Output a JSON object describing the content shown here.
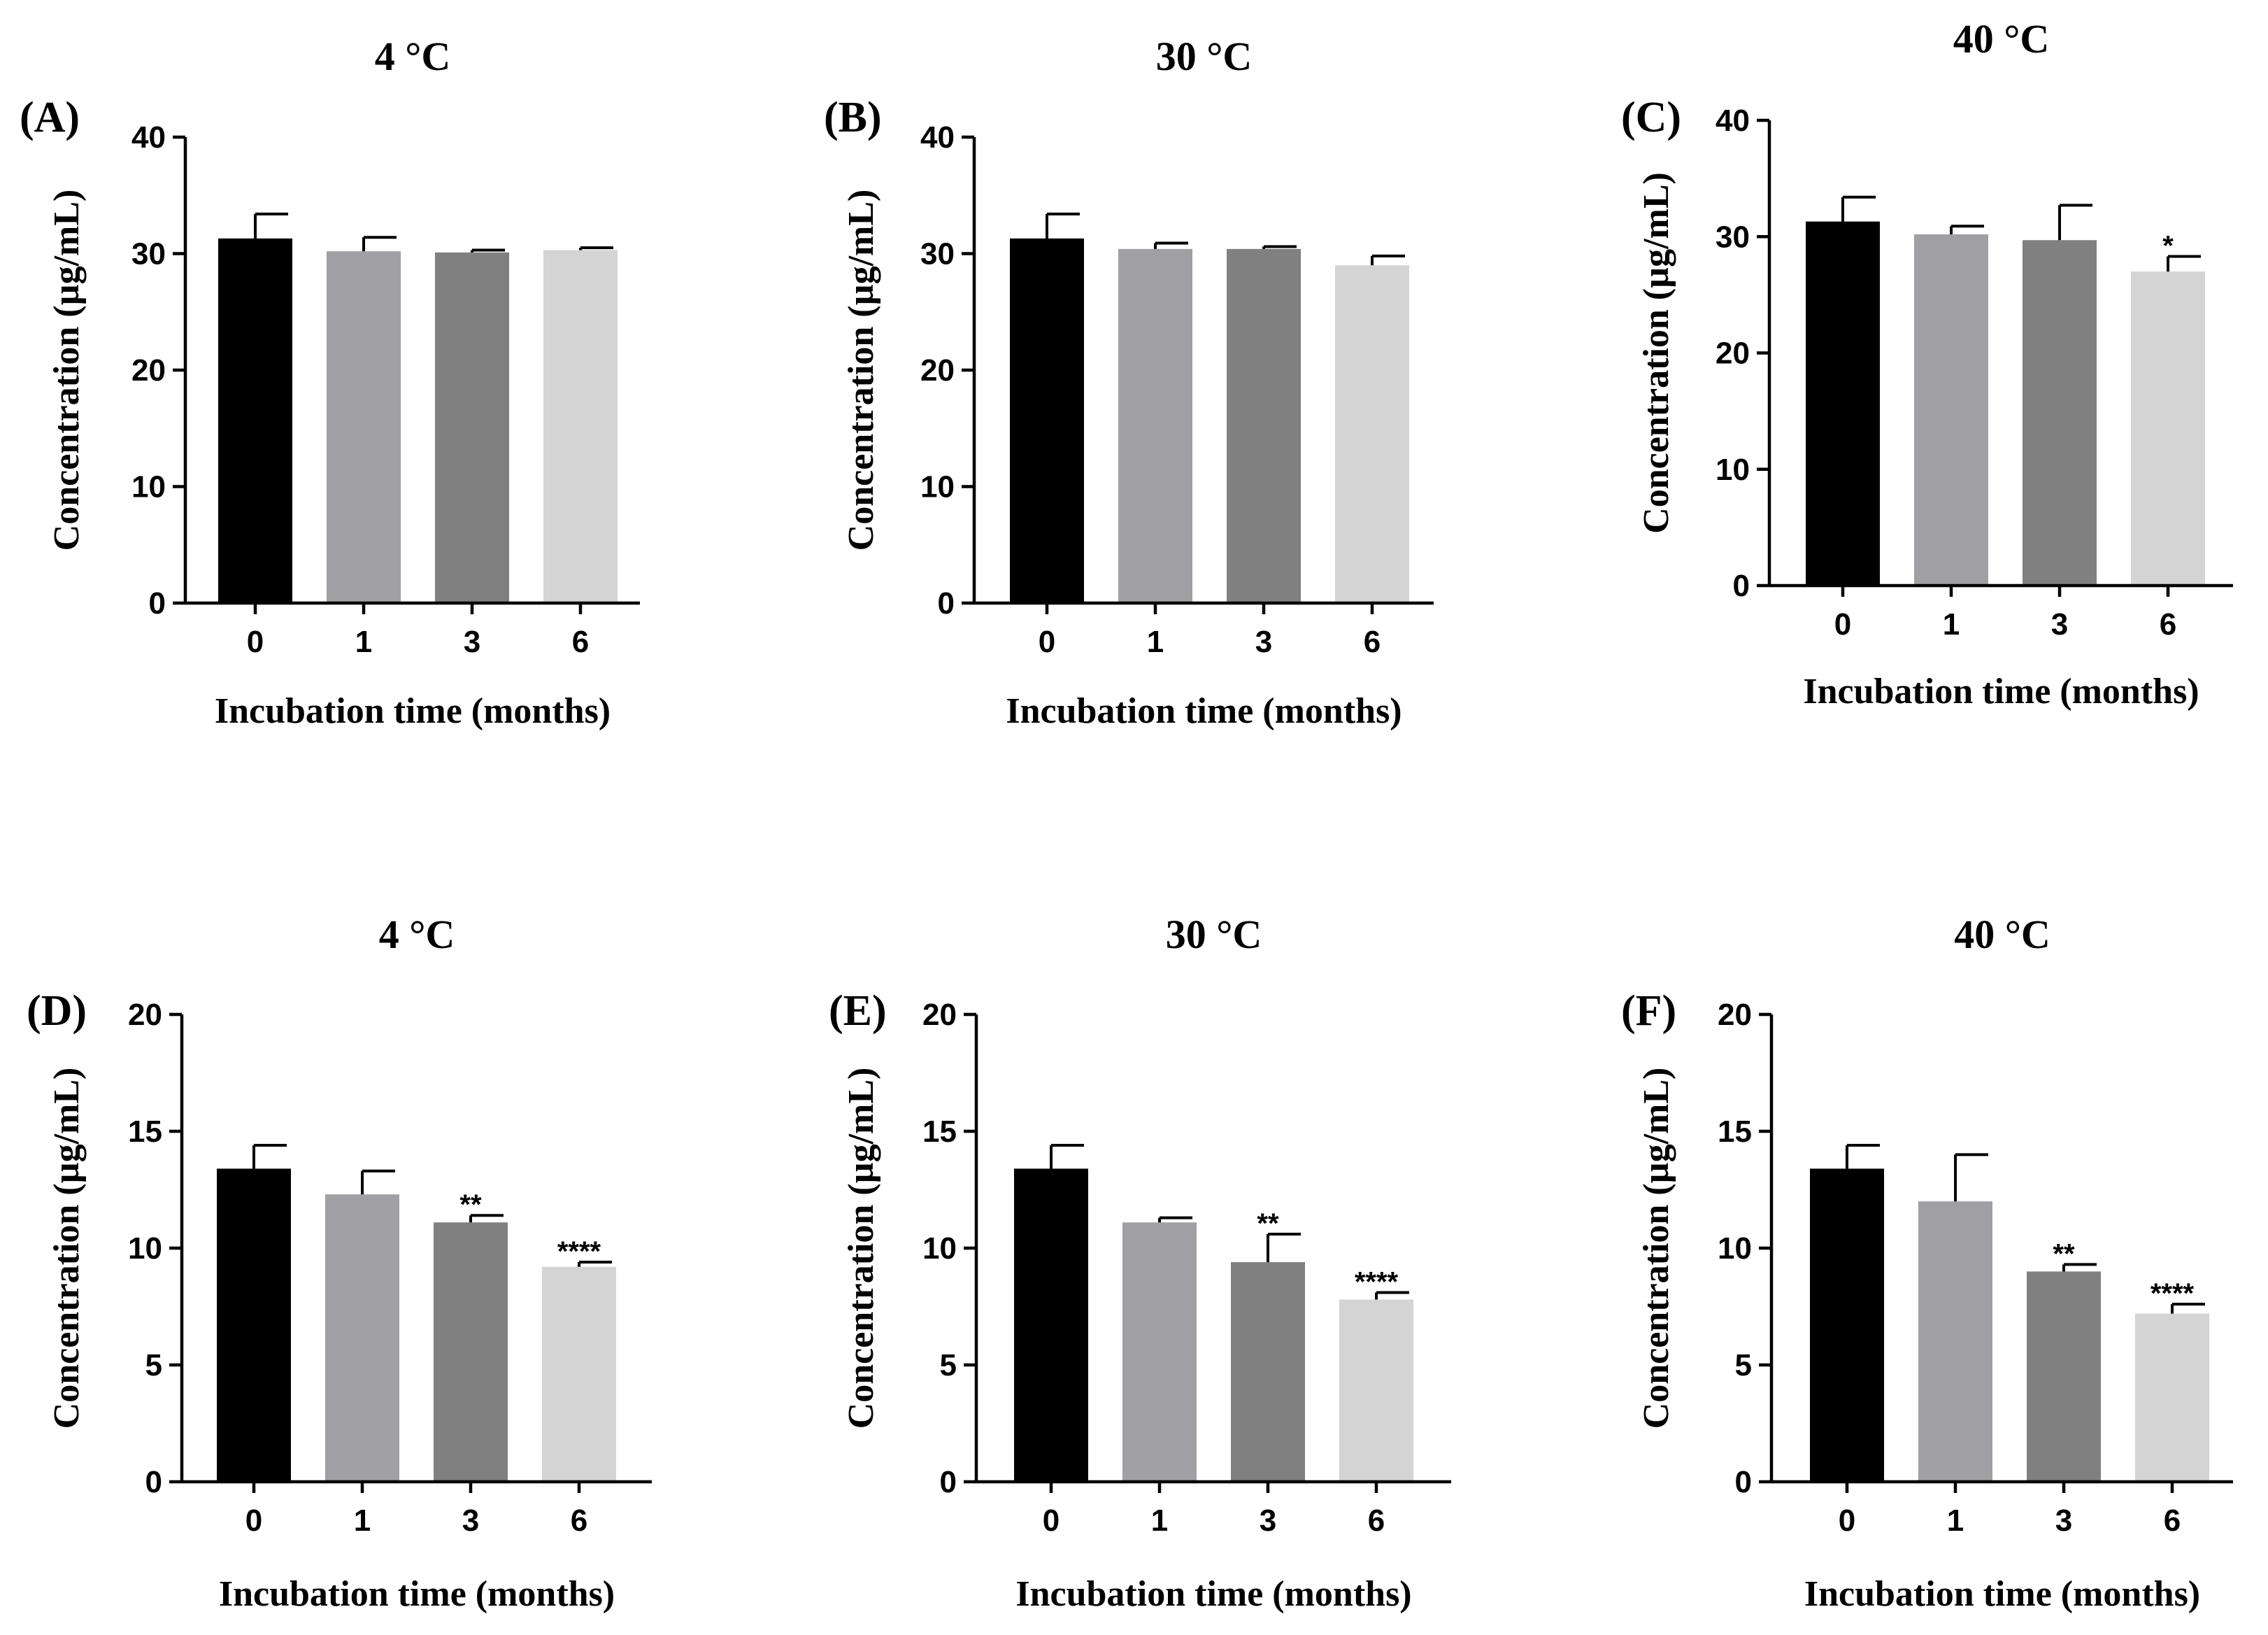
{
  "chart_data": [
    {
      "type": "bar",
      "panel": "(A)",
      "title": "4 °C",
      "xlabel": "Incubation time (months)",
      "ylabel": "Concentration (µg/mL)",
      "ylim": [
        0,
        40
      ],
      "yticks": [
        0,
        10,
        20,
        30,
        40
      ],
      "categories": [
        "0",
        "1",
        "3",
        "6"
      ],
      "values": [
        31.3,
        30.2,
        30.1,
        30.3
      ],
      "errors": [
        2.1,
        1.2,
        0.2,
        0.2
      ],
      "significance": [
        "",
        "",
        "",
        ""
      ],
      "colors": [
        "#000000",
        "#a0a0a4",
        "#808080",
        "#d4d4d4"
      ]
    },
    {
      "type": "bar",
      "panel": "(B)",
      "title": "30 °C",
      "xlabel": "Incubation time (months)",
      "ylabel": "Concentration (µg/mL)",
      "ylim": [
        0,
        40
      ],
      "yticks": [
        0,
        10,
        20,
        30,
        40
      ],
      "categories": [
        "0",
        "1",
        "3",
        "6"
      ],
      "values": [
        31.3,
        30.4,
        30.4,
        29.0
      ],
      "errors": [
        2.1,
        0.5,
        0.2,
        0.8
      ],
      "significance": [
        "",
        "",
        "",
        ""
      ],
      "colors": [
        "#000000",
        "#a0a0a4",
        "#808080",
        "#d4d4d4"
      ]
    },
    {
      "type": "bar",
      "panel": "(C)",
      "title": "40 °C",
      "xlabel": "Incubation time (months)",
      "ylabel": "Concentration (µg/mL)",
      "ylim": [
        0,
        40
      ],
      "yticks": [
        0,
        10,
        20,
        30,
        40
      ],
      "categories": [
        "0",
        "1",
        "3",
        "6"
      ],
      "values": [
        31.3,
        30.2,
        29.7,
        27.0
      ],
      "errors": [
        2.1,
        0.7,
        3.0,
        1.3
      ],
      "significance": [
        "",
        "",
        "",
        "*"
      ],
      "colors": [
        "#000000",
        "#a0a0a4",
        "#808080",
        "#d4d4d4"
      ]
    },
    {
      "type": "bar",
      "panel": "(D)",
      "title": "4 °C",
      "xlabel": "Incubation time (months)",
      "ylabel": "Concentration (µg/mL)",
      "ylim": [
        0,
        20
      ],
      "yticks": [
        0,
        5,
        10,
        15,
        20
      ],
      "categories": [
        "0",
        "1",
        "3",
        "6"
      ],
      "values": [
        13.4,
        12.3,
        11.1,
        9.2
      ],
      "errors": [
        1.0,
        1.0,
        0.3,
        0.2
      ],
      "significance": [
        "",
        "",
        "**",
        "****"
      ],
      "colors": [
        "#000000",
        "#a0a0a4",
        "#808080",
        "#d4d4d4"
      ]
    },
    {
      "type": "bar",
      "panel": "(E)",
      "title": "30 °C",
      "xlabel": "Incubation time (months)",
      "ylabel": "Concentration (µg/mL)",
      "ylim": [
        0,
        20
      ],
      "yticks": [
        0,
        5,
        10,
        15,
        20
      ],
      "categories": [
        "0",
        "1",
        "3",
        "6"
      ],
      "values": [
        13.4,
        11.1,
        9.4,
        7.8
      ],
      "errors": [
        1.0,
        0.2,
        1.2,
        0.3
      ],
      "significance": [
        "",
        "",
        "**",
        "****"
      ],
      "colors": [
        "#000000",
        "#a0a0a4",
        "#808080",
        "#d4d4d4"
      ]
    },
    {
      "type": "bar",
      "panel": "(F)",
      "title": "40 °C",
      "xlabel": "Incubation time (months)",
      "ylabel": "Concentration (µg/mL)",
      "ylim": [
        0,
        20
      ],
      "yticks": [
        0,
        5,
        10,
        15,
        20
      ],
      "categories": [
        "0",
        "1",
        "3",
        "6"
      ],
      "values": [
        13.4,
        12.0,
        9.0,
        7.2
      ],
      "errors": [
        1.0,
        2.0,
        0.3,
        0.4
      ],
      "significance": [
        "",
        "",
        "**",
        "****"
      ],
      "colors": [
        "#000000",
        "#a0a0a4",
        "#808080",
        "#d4d4d4"
      ]
    }
  ]
}
